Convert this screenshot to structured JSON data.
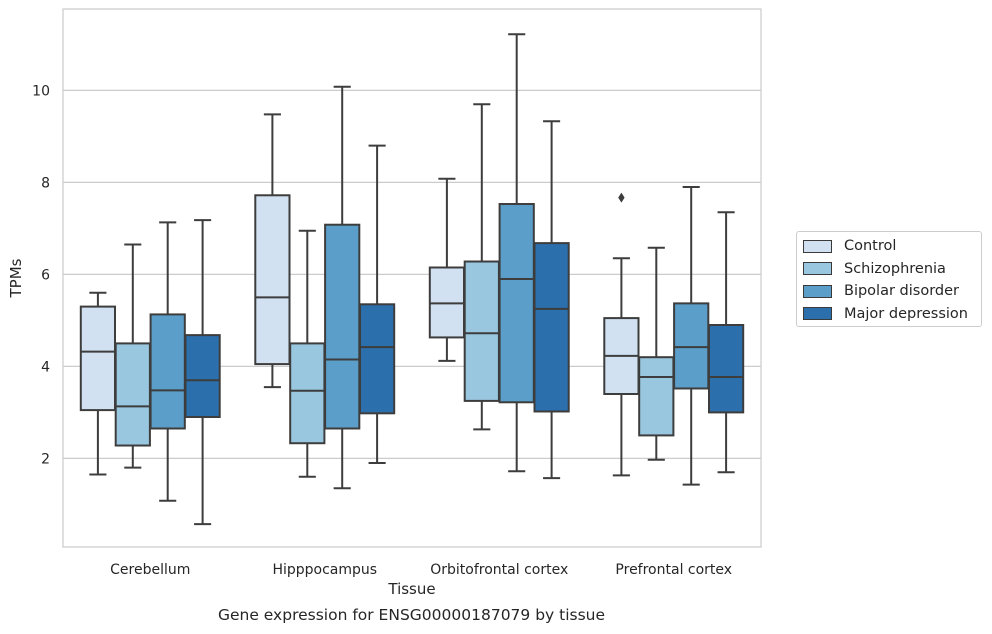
{
  "chart_data": {
    "type": "box",
    "caption": "Gene expression for ENSG00000187079 by tissue",
    "xlabel": "Tissue",
    "ylabel": "TPMs",
    "ylim": [
      0.2,
      11.9
    ],
    "yticks": [
      2,
      4,
      6,
      8,
      10
    ],
    "grid": "horizontal",
    "legend_position": "right",
    "categories": [
      "Cerebellum",
      "Hipppocampus",
      "Orbitofrontal cortex",
      "Prefrontal cortex"
    ],
    "series": [
      {
        "name": "Control",
        "color": "#d1e1f1",
        "boxes": [
          {
            "whislo": 1.65,
            "q1": 3.05,
            "med": 4.32,
            "q3": 5.3,
            "whishi": 5.6,
            "fliers": []
          },
          {
            "whislo": 3.55,
            "q1": 4.05,
            "med": 5.5,
            "q3": 7.72,
            "whishi": 9.48,
            "fliers": []
          },
          {
            "whislo": 4.12,
            "q1": 4.63,
            "med": 5.37,
            "q3": 6.15,
            "whishi": 8.08,
            "fliers": []
          },
          {
            "whislo": 1.63,
            "q1": 3.4,
            "med": 4.23,
            "q3": 5.05,
            "whishi": 6.35,
            "fliers": [
              7.67
            ]
          }
        ]
      },
      {
        "name": "Schizophrenia",
        "color": "#9ac7e0",
        "boxes": [
          {
            "whislo": 1.8,
            "q1": 2.28,
            "med": 3.13,
            "q3": 4.5,
            "whishi": 6.65,
            "fliers": []
          },
          {
            "whislo": 1.6,
            "q1": 2.33,
            "med": 3.47,
            "q3": 4.5,
            "whishi": 6.95,
            "fliers": []
          },
          {
            "whislo": 2.63,
            "q1": 3.25,
            "med": 4.72,
            "q3": 6.28,
            "whishi": 9.7,
            "fliers": []
          },
          {
            "whislo": 1.97,
            "q1": 2.5,
            "med": 3.77,
            "q3": 4.2,
            "whishi": 6.58,
            "fliers": []
          }
        ]
      },
      {
        "name": "Bipolar disorder",
        "color": "#5a9ec9",
        "boxes": [
          {
            "whislo": 1.08,
            "q1": 2.65,
            "med": 3.48,
            "q3": 5.13,
            "whishi": 7.13,
            "fliers": []
          },
          {
            "whislo": 1.35,
            "q1": 2.65,
            "med": 4.15,
            "q3": 7.08,
            "whishi": 10.08,
            "fliers": []
          },
          {
            "whislo": 1.72,
            "q1": 3.22,
            "med": 5.9,
            "q3": 7.53,
            "whishi": 11.22,
            "fliers": []
          },
          {
            "whislo": 1.43,
            "q1": 3.52,
            "med": 4.42,
            "q3": 5.37,
            "whishi": 7.9,
            "fliers": []
          }
        ]
      },
      {
        "name": "Major depression",
        "color": "#2c6fad",
        "boxes": [
          {
            "whislo": 0.57,
            "q1": 2.9,
            "med": 3.7,
            "q3": 4.68,
            "whishi": 7.18,
            "fliers": []
          },
          {
            "whislo": 1.9,
            "q1": 2.98,
            "med": 4.42,
            "q3": 5.35,
            "whishi": 8.8,
            "fliers": []
          },
          {
            "whislo": 1.57,
            "q1": 3.02,
            "med": 5.25,
            "q3": 6.68,
            "whishi": 9.33,
            "fliers": []
          },
          {
            "whislo": 1.7,
            "q1": 3.0,
            "med": 3.77,
            "q3": 4.9,
            "whishi": 7.35,
            "fliers": []
          }
        ]
      }
    ]
  }
}
